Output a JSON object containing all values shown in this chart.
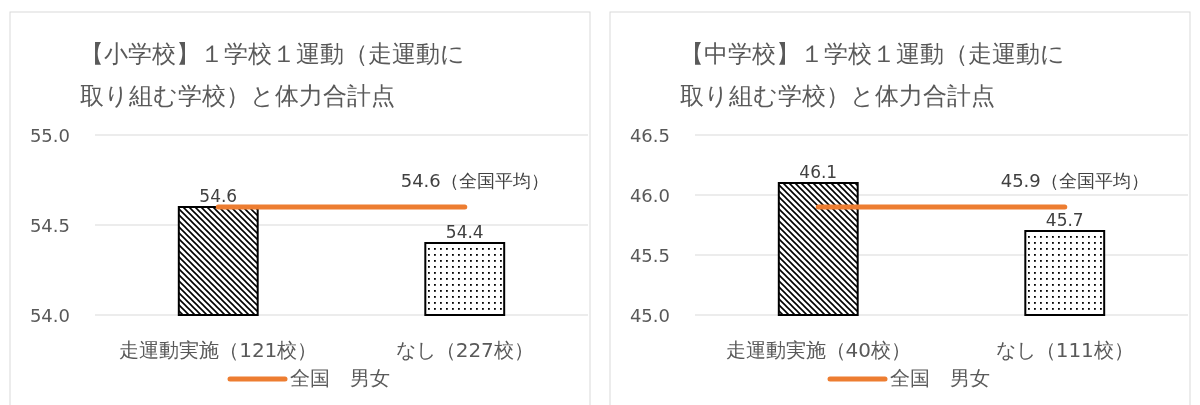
{
  "chart_data": [
    {
      "type": "bar",
      "title": "【小学校】１学校１運動（走運動に取り組む学校）と体力合計点",
      "categories": [
        "走運動実施（121校）",
        "なし（227校）"
      ],
      "ylim": [
        54.0,
        55.0
      ],
      "yticks": [
        {
          "value": 54.0,
          "label": "54.0"
        },
        {
          "value": 54.5,
          "label": "54.5"
        },
        {
          "value": 55.0,
          "label": "55.0"
        }
      ],
      "grid": "y",
      "legend": "bottom",
      "series": [
        {
          "color": "#000000",
          "values": [
            54.6,
            54.4
          ],
          "value_labels": [
            "54.6",
            "54.4"
          ]
        },
        {
          "type": "line",
          "name": "全国　男女",
          "color": "#ed7d31",
          "values": [
            54.6,
            54.6
          ],
          "value_labels": [
            null,
            "54.6（全国平均）"
          ]
        }
      ]
    },
    {
      "type": "bar",
      "title": "【中学校】１学校１運動（走運動に取り組む学校）と体力合計点",
      "categories": [
        "走運動実施（40校）",
        "なし（111校）"
      ],
      "ylim": [
        45.0,
        46.5
      ],
      "yticks": [
        {
          "value": 45.0,
          "label": "45.0"
        },
        {
          "value": 45.5,
          "label": "45.5"
        },
        {
          "value": 46.0,
          "label": "46.0"
        },
        {
          "value": 46.5,
          "label": "46.5"
        }
      ],
      "grid": "y",
      "legend": "bottom",
      "series": [
        {
          "color": "#000000",
          "values": [
            46.1,
            45.7
          ],
          "value_labels": [
            "46.1",
            "45.7"
          ]
        },
        {
          "type": "line",
          "name": "全国　男女",
          "color": "#ed7d31",
          "values": [
            45.9,
            45.9
          ],
          "value_labels": [
            null,
            "45.9（全国平均）"
          ]
        }
      ]
    }
  ]
}
